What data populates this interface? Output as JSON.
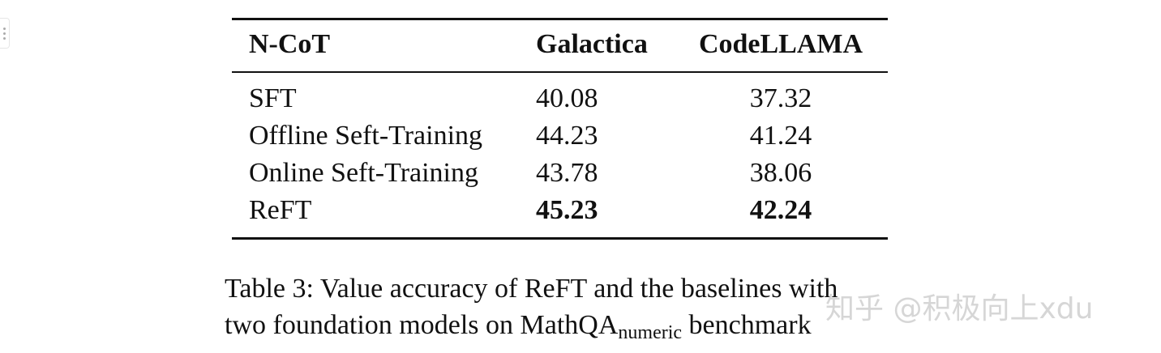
{
  "table": {
    "headers": [
      "N-CoT",
      "Galactica",
      "CodeLLAMA"
    ],
    "rows": [
      {
        "method": "SFT",
        "galactica": "40.08",
        "codellama": "37.32",
        "bold": false
      },
      {
        "method": "Offline Seft-Training",
        "galactica": "44.23",
        "codellama": "41.24",
        "bold": false
      },
      {
        "method": "Online Seft-Training",
        "galactica": "43.78",
        "codellama": "38.06",
        "bold": false
      },
      {
        "method": "ReFT",
        "galactica": "45.23",
        "codellama": "42.24",
        "bold": true
      }
    ]
  },
  "caption": {
    "line1": "Table 3: Value accuracy of ReFT and the baselines with",
    "line2_pre": "two foundation models on MathQA",
    "line2_sub": "numeric",
    "line2_post": " benchmark"
  },
  "watermark": "知乎 @积极向上xdu"
}
